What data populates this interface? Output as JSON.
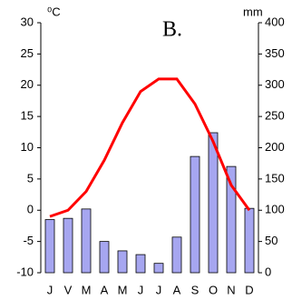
{
  "chart_data": {
    "type": "combo",
    "title": "B.",
    "y_label": "⁰C",
    "y2_label": "mm",
    "categories": [
      "J",
      "V",
      "M",
      "A",
      "M",
      "J",
      "J",
      "A",
      "S",
      "O",
      "N",
      "D"
    ],
    "series": [
      {
        "type": "bar",
        "axis": "y2",
        "color": "#a6a6f0",
        "values": [
          85,
          87,
          102,
          50,
          35,
          29,
          15,
          57,
          186,
          224,
          170,
          103
        ]
      },
      {
        "type": "line",
        "color": "#ff0000",
        "values": [
          -1,
          0,
          3,
          8,
          14,
          19,
          21,
          21,
          17,
          11,
          4,
          0
        ]
      }
    ],
    "ylim": [
      -10,
      30
    ],
    "yticks": [
      -10,
      -5,
      0,
      5,
      10,
      15,
      20,
      25,
      30
    ],
    "y2lim": [
      0,
      400
    ],
    "y2ticks": [
      0,
      50,
      100,
      150,
      200,
      250,
      300,
      350,
      400
    ]
  }
}
